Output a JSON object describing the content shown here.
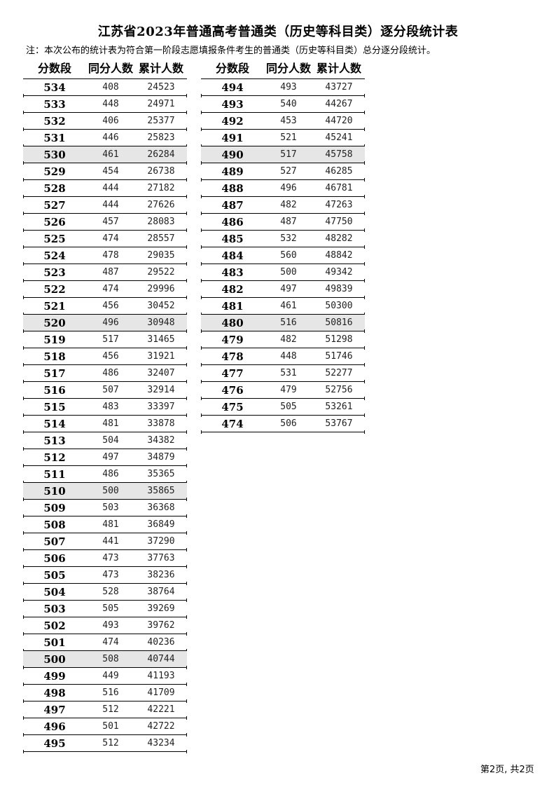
{
  "title": "江苏省2023年普通高考普通类（历史等科目类）逐分段统计表",
  "note": "注：本次公布的统计表为符合第一阶段志愿填报条件考生的普通类（历史等科目类）总分逐分段统计。",
  "headers": [
    "分数段",
    "同分人数",
    "累计人数"
  ],
  "left_rows": [
    [
      "534",
      "408",
      "24523"
    ],
    [
      "533",
      "448",
      "24971"
    ],
    [
      "532",
      "406",
      "25377"
    ],
    [
      "531",
      "446",
      "25823"
    ],
    [
      "530",
      "461",
      "26284"
    ],
    [
      "529",
      "454",
      "26738"
    ],
    [
      "528",
      "444",
      "27182"
    ],
    [
      "527",
      "444",
      "27626"
    ],
    [
      "526",
      "457",
      "28083"
    ],
    [
      "525",
      "474",
      "28557"
    ],
    [
      "524",
      "478",
      "29035"
    ],
    [
      "523",
      "487",
      "29522"
    ],
    [
      "522",
      "474",
      "29996"
    ],
    [
      "521",
      "456",
      "30452"
    ],
    [
      "520",
      "496",
      "30948"
    ],
    [
      "519",
      "517",
      "31465"
    ],
    [
      "518",
      "456",
      "31921"
    ],
    [
      "517",
      "486",
      "32407"
    ],
    [
      "516",
      "507",
      "32914"
    ],
    [
      "515",
      "483",
      "33397"
    ],
    [
      "514",
      "481",
      "33878"
    ],
    [
      "513",
      "504",
      "34382"
    ],
    [
      "512",
      "497",
      "34879"
    ],
    [
      "511",
      "486",
      "35365"
    ],
    [
      "510",
      "500",
      "35865"
    ],
    [
      "509",
      "503",
      "36368"
    ],
    [
      "508",
      "481",
      "36849"
    ],
    [
      "507",
      "441",
      "37290"
    ],
    [
      "506",
      "473",
      "37763"
    ],
    [
      "505",
      "473",
      "38236"
    ],
    [
      "504",
      "528",
      "38764"
    ],
    [
      "503",
      "505",
      "39269"
    ],
    [
      "502",
      "493",
      "39762"
    ],
    [
      "501",
      "474",
      "40236"
    ],
    [
      "500",
      "508",
      "40744"
    ],
    [
      "499",
      "449",
      "41193"
    ],
    [
      "498",
      "516",
      "41709"
    ],
    [
      "497",
      "512",
      "42221"
    ],
    [
      "496",
      "501",
      "42722"
    ],
    [
      "495",
      "512",
      "43234"
    ]
  ],
  "right_rows": [
    [
      "494",
      "493",
      "43727"
    ],
    [
      "493",
      "540",
      "44267"
    ],
    [
      "492",
      "453",
      "44720"
    ],
    [
      "491",
      "521",
      "45241"
    ],
    [
      "490",
      "517",
      "45758"
    ],
    [
      "489",
      "527",
      "46285"
    ],
    [
      "488",
      "496",
      "46781"
    ],
    [
      "487",
      "482",
      "47263"
    ],
    [
      "486",
      "487",
      "47750"
    ],
    [
      "485",
      "532",
      "48282"
    ],
    [
      "484",
      "560",
      "48842"
    ],
    [
      "483",
      "500",
      "49342"
    ],
    [
      "482",
      "497",
      "49839"
    ],
    [
      "481",
      "461",
      "50300"
    ],
    [
      "480",
      "516",
      "50816"
    ],
    [
      "479",
      "482",
      "51298"
    ],
    [
      "478",
      "448",
      "51746"
    ],
    [
      "477",
      "531",
      "52277"
    ],
    [
      "476",
      "479",
      "52756"
    ],
    [
      "475",
      "505",
      "53261"
    ],
    [
      "474",
      "506",
      "53767"
    ]
  ],
  "shade_color": "#e6e6e6",
  "footer": "第2页, 共2页"
}
